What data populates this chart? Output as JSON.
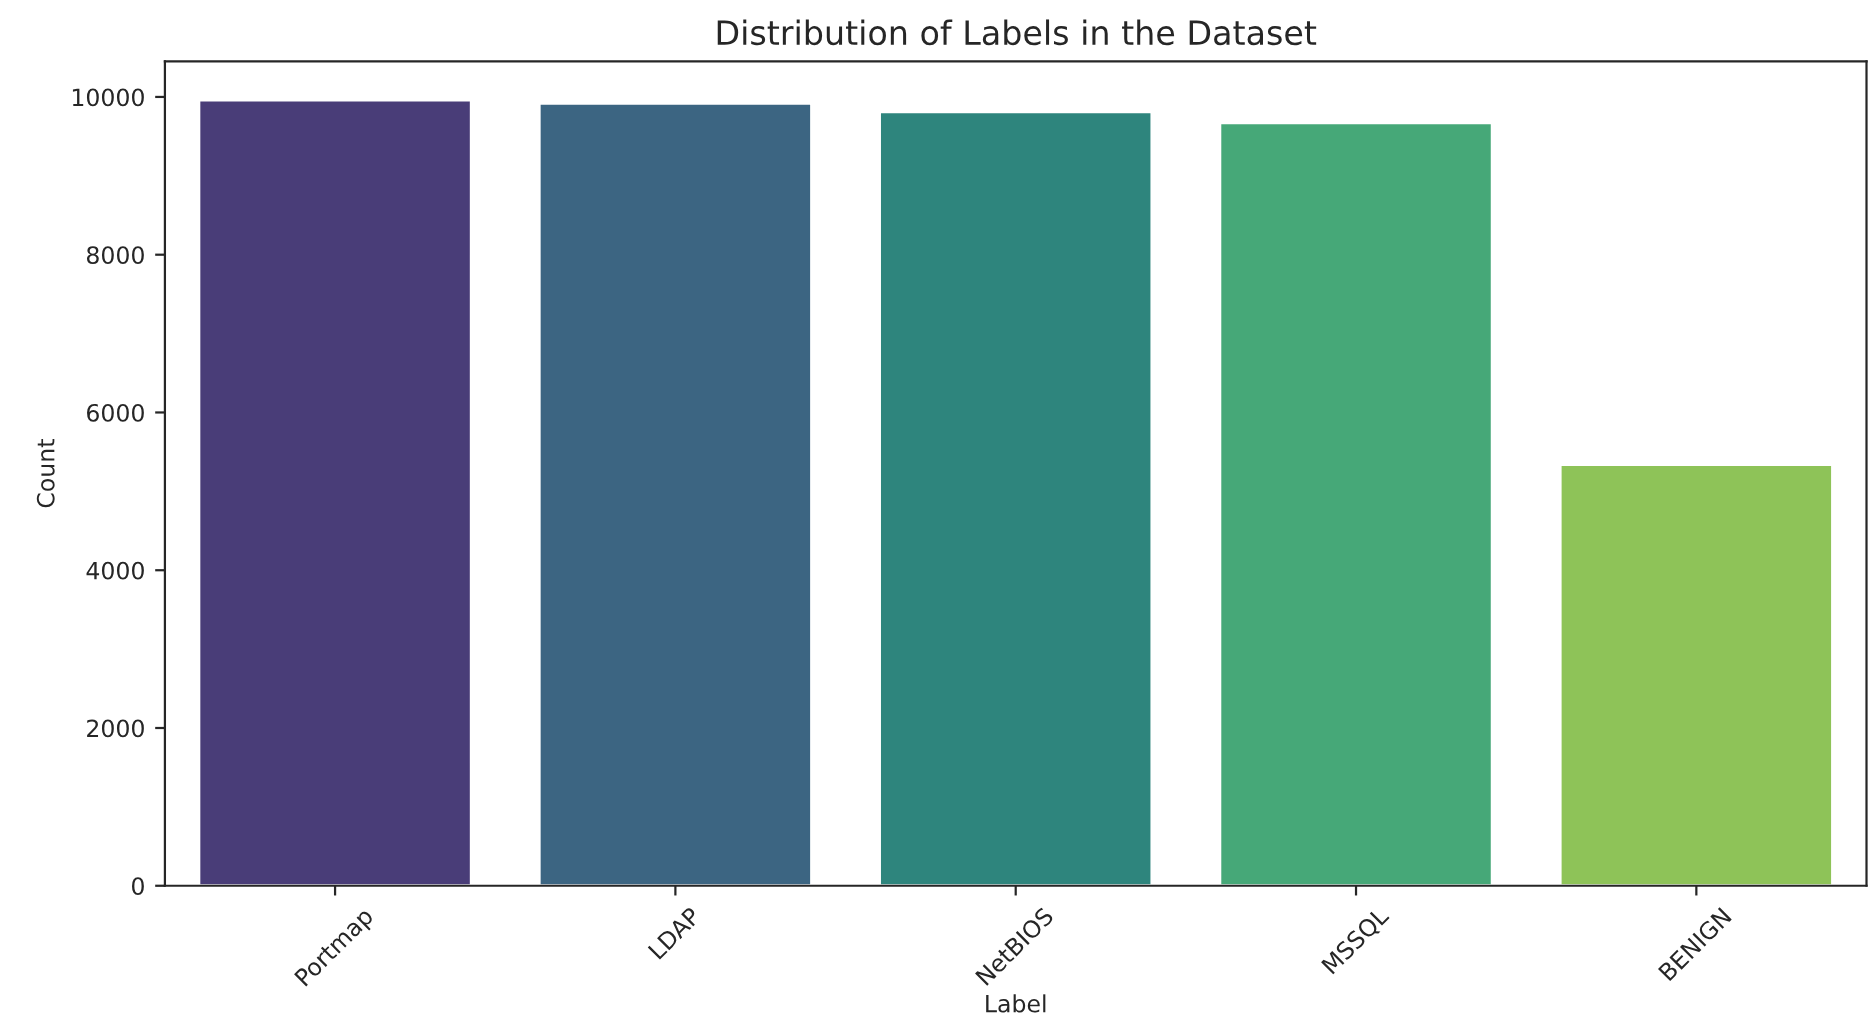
{
  "chart_data": {
    "type": "bar",
    "title": "Distribution of Labels in the Dataset",
    "xlabel": "Label",
    "ylabel": "Count",
    "categories": [
      "Portmap",
      "LDAP",
      "NetBIOS",
      "MSSQL",
      "BENIGN"
    ],
    "values": [
      9960,
      9920,
      9810,
      9670,
      5340
    ],
    "colors": [
      "#493d78",
      "#3c6582",
      "#2e857d",
      "#46a878",
      "#8ec358"
    ],
    "ylim": [
      0,
      10450
    ],
    "yticks": [
      0,
      2000,
      4000,
      6000,
      8000,
      10000
    ],
    "grid": false
  }
}
